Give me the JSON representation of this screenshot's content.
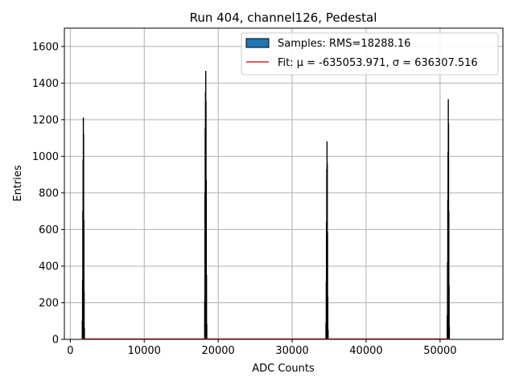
{
  "chart_data": {
    "type": "histogram",
    "title": "Run 404, channel126, Pedestal",
    "xlabel": "ADC Counts",
    "ylabel": "Entries",
    "xlim": [
      -800,
      58500
    ],
    "ylim": [
      0,
      1700
    ],
    "xticks": [
      0,
      10000,
      20000,
      30000,
      40000,
      50000
    ],
    "yticks": [
      0,
      200,
      400,
      600,
      800,
      1000,
      1200,
      1400,
      1600
    ],
    "grid": true,
    "legend_position": "top-right",
    "series": [
      {
        "name": "Samples: RMS=18288.16",
        "kind": "histogram",
        "fill_color": "#1f77b4",
        "edge_color": "#000000",
        "peaks": [
          {
            "center": 1750,
            "max": 1210,
            "profile": [
              100,
              320,
              700,
              980,
              1210,
              1120,
              650,
              260,
              60
            ]
          },
          {
            "center": 18300,
            "max": 1465,
            "profile": [
              210,
              800,
              1150,
              1350,
              1465,
              1300,
              870,
              350,
              80
            ]
          },
          {
            "center": 34700,
            "max": 1080,
            "profile": [
              90,
              310,
              640,
              930,
              1080,
              960,
              580,
              230,
              50
            ]
          },
          {
            "center": 51100,
            "max": 1310,
            "profile": [
              130,
              420,
              760,
              1020,
              1310,
              1180,
              700,
              290,
              70
            ]
          }
        ],
        "peak_width": 320
      },
      {
        "name": "Fit: μ = -635053.971, σ = 636307.516",
        "kind": "line",
        "color": "#d62728",
        "x": [
          1500,
          51300
        ],
        "y": [
          0,
          0
        ]
      }
    ]
  }
}
